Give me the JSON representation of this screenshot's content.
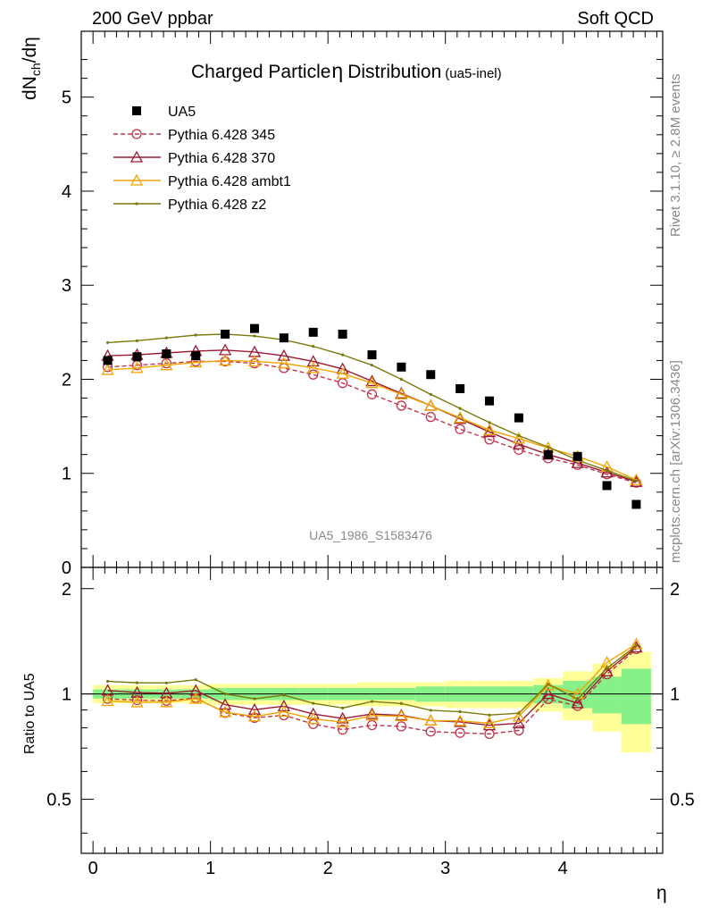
{
  "header": {
    "left": "200 GeV ppbar",
    "right": "Soft QCD",
    "side_top": "Rivet 3.1.10, ≥ 2.8M events",
    "side_bottom": "mcplots.cern.ch [arXiv:1306.3436]"
  },
  "chart_data": {
    "type": "line",
    "title": "Charged Particle",
    "title_symbol": "η",
    "title_suffix": "Distribution",
    "title_sub": "(ua5-inel)",
    "watermark": "UA5_1986_S1583476",
    "xlabel": "η",
    "ylabel_main": "dN",
    "ylabel_sub": "ch",
    "ylabel_tail": "/dη",
    "ratio_ylabel": "Ratio to UA5",
    "xlim": [
      -0.1,
      4.85
    ],
    "ylim": [
      0,
      5.7
    ],
    "ratio_ylim": [
      0.35,
      2.3
    ],
    "x_ticks": [
      "0",
      "1",
      "2",
      "3",
      "4"
    ],
    "y_ticks": [
      "0",
      "1",
      "2",
      "3",
      "4",
      "5"
    ],
    "ratio_ticks": [
      "0.5",
      "1",
      "2"
    ],
    "x": [
      0.125,
      0.375,
      0.625,
      0.875,
      1.125,
      1.375,
      1.625,
      1.875,
      2.125,
      2.375,
      2.625,
      2.875,
      3.125,
      3.375,
      3.625,
      3.875,
      4.125,
      4.375,
      4.625
    ],
    "data": {
      "name": "UA5",
      "values": [
        2.2,
        2.24,
        2.27,
        2.25,
        2.48,
        2.54,
        2.44,
        2.5,
        2.48,
        2.26,
        2.13,
        2.05,
        1.9,
        1.77,
        1.59,
        1.2,
        1.18,
        0.87,
        0.67
      ],
      "band_inner": [
        0.03,
        0.03,
        0.03,
        0.03,
        0.04,
        0.04,
        0.04,
        0.04,
        0.04,
        0.04,
        0.04,
        0.05,
        0.05,
        0.05,
        0.05,
        0.06,
        0.09,
        0.12,
        0.18
      ],
      "band_outer": [
        0.06,
        0.06,
        0.06,
        0.06,
        0.07,
        0.07,
        0.07,
        0.07,
        0.07,
        0.08,
        0.08,
        0.08,
        0.09,
        0.09,
        0.09,
        0.11,
        0.16,
        0.22,
        0.32
      ]
    },
    "series": [
      {
        "name": "Pythia 6.428 345",
        "color": "#c0344b",
        "marker": "circle",
        "dashed": true,
        "values": [
          2.13,
          2.15,
          2.17,
          2.19,
          2.19,
          2.17,
          2.12,
          2.05,
          1.96,
          1.84,
          1.72,
          1.6,
          1.47,
          1.36,
          1.25,
          1.16,
          1.09,
          0.99,
          0.9
        ]
      },
      {
        "name": "Pythia 6.428 370",
        "color": "#9a1a33",
        "marker": "triangle",
        "dashed": false,
        "values": [
          2.25,
          2.26,
          2.28,
          2.3,
          2.31,
          2.29,
          2.25,
          2.19,
          2.11,
          1.98,
          1.85,
          1.72,
          1.58,
          1.44,
          1.31,
          1.2,
          1.11,
          1.01,
          0.91
        ]
      },
      {
        "name": "Pythia 6.428 ambt1",
        "color": "#f2a400",
        "marker": "triangle",
        "dashed": false,
        "values": [
          2.1,
          2.12,
          2.15,
          2.18,
          2.2,
          2.19,
          2.17,
          2.12,
          2.06,
          1.96,
          1.84,
          1.72,
          1.59,
          1.46,
          1.37,
          1.27,
          1.18,
          1.07,
          0.93
        ]
      },
      {
        "name": "Pythia 6.428 z2",
        "color": "#7a7a0a",
        "marker": "dot",
        "dashed": false,
        "values": [
          2.39,
          2.41,
          2.44,
          2.47,
          2.48,
          2.46,
          2.42,
          2.35,
          2.26,
          2.15,
          2.0,
          1.84,
          1.69,
          1.54,
          1.4,
          1.28,
          1.14,
          1.03,
          0.92
        ]
      }
    ]
  }
}
